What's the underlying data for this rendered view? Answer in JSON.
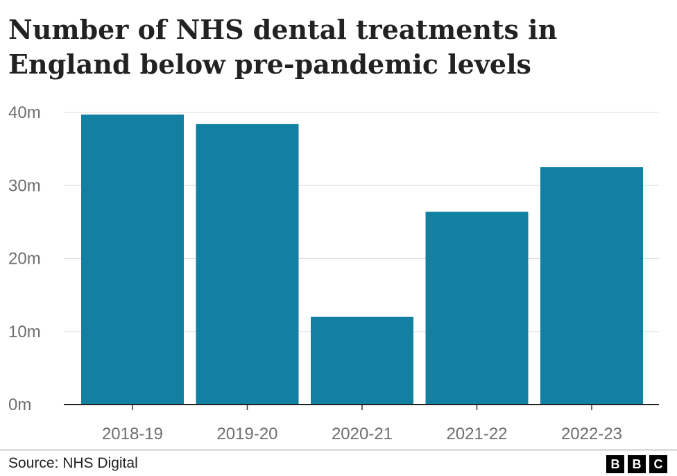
{
  "title": "Number of NHS dental treatments in England below pre-pandemic levels",
  "source": "Source: NHS Digital",
  "logo": {
    "letters": [
      "B",
      "B",
      "C"
    ]
  },
  "chart_data": {
    "type": "bar",
    "categories": [
      "2018-19",
      "2019-20",
      "2020-21",
      "2021-22",
      "2022-23"
    ],
    "values": [
      39.7,
      38.4,
      12.0,
      26.4,
      32.5
    ],
    "yticks": [
      "0m",
      "10m",
      "20m",
      "30m",
      "40m"
    ],
    "ytick_values": [
      0,
      10,
      20,
      30,
      40
    ],
    "ylim": [
      0,
      40
    ],
    "unit": "m",
    "bar_color": "#1380a1",
    "grid": true,
    "legend": "none"
  }
}
